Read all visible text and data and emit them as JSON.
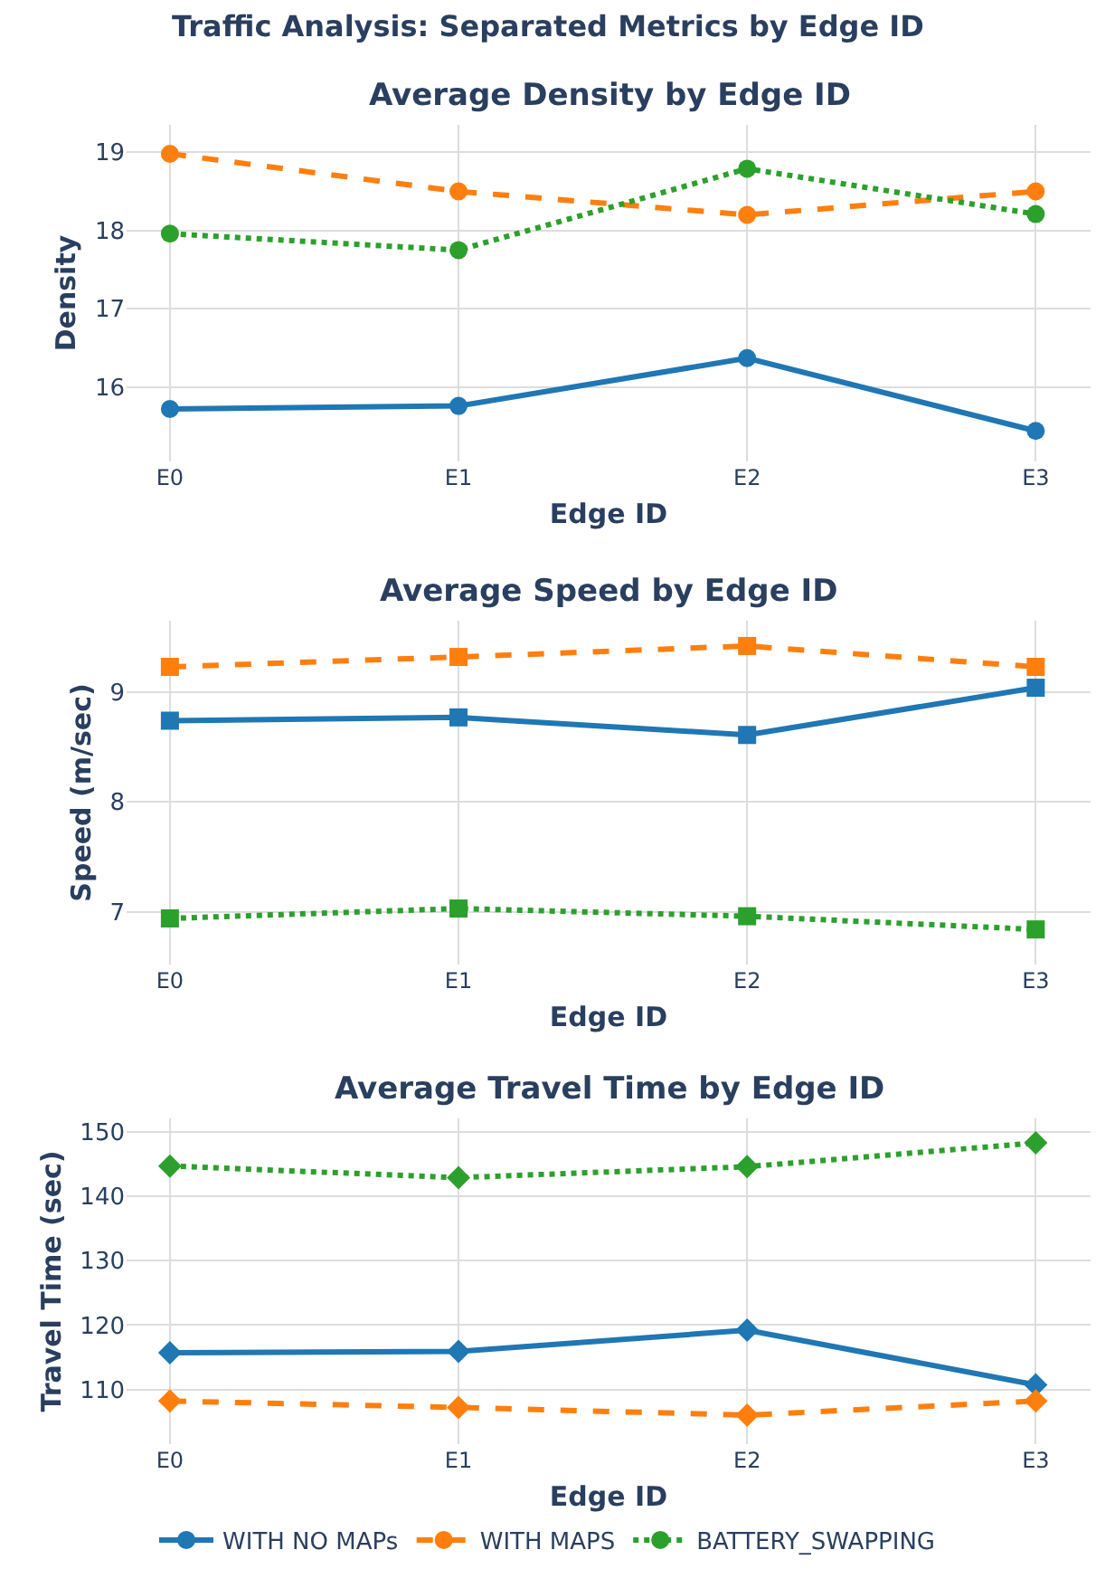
{
  "chart_data": [
    {
      "type": "line",
      "title": "Traffic Analysis: Separated Metrics by Edge ID",
      "subtitle": "Average Density by Edge ID",
      "xlabel": "Edge ID",
      "ylabel": "Density",
      "categories": [
        "E0",
        "E1",
        "E2",
        "E3"
      ],
      "ylim": [
        15.05,
        19.35
      ],
      "yticks": [
        16,
        17,
        18,
        19
      ],
      "grid": true,
      "marker": "circle",
      "legend": "bottom",
      "series": [
        {
          "name": "WITH NO MAPs",
          "color": "#1f77b4",
          "line_style": "solid",
          "values": [
            15.72,
            15.76,
            16.37,
            15.44
          ]
        },
        {
          "name": "WITH MAPS",
          "color": "#ff7f0e",
          "line_style": "dashed",
          "values": [
            18.98,
            18.5,
            18.2,
            18.5
          ]
        },
        {
          "name": "BATTERY_SWAPPING",
          "color": "#2ca02c",
          "line_style": "dotted",
          "values": [
            17.96,
            17.75,
            18.79,
            18.21
          ]
        }
      ]
    },
    {
      "type": "line",
      "title": "Average Speed by Edge ID",
      "xlabel": "Edge ID",
      "ylabel": "Speed (m/sec)",
      "categories": [
        "E0",
        "E1",
        "E2",
        "E3"
      ],
      "ylim": [
        6.52,
        9.65
      ],
      "yticks": [
        7,
        8,
        9
      ],
      "grid": true,
      "marker": "square",
      "series": [
        {
          "color": "#1f77b4",
          "line_style": "solid",
          "values": [
            8.74,
            8.77,
            8.61,
            9.04
          ]
        },
        {
          "color": "#ff7f0e",
          "line_style": "dashed",
          "values": [
            9.23,
            9.32,
            9.42,
            9.23
          ]
        },
        {
          "color": "#2ca02c",
          "line_style": "dotted",
          "values": [
            6.94,
            7.03,
            6.96,
            6.84
          ]
        }
      ]
    },
    {
      "type": "line",
      "title": "Average Travel Time by Edge ID",
      "xlabel": "Edge ID",
      "ylabel": "Travel Time (sec)",
      "categories": [
        "E0",
        "E1",
        "E2",
        "E3"
      ],
      "ylim": [
        101.5,
        152.1
      ],
      "yticks": [
        110,
        120,
        130,
        140,
        150
      ],
      "grid": true,
      "marker": "diamond",
      "series": [
        {
          "color": "#1f77b4",
          "line_style": "solid",
          "values": [
            115.7,
            115.9,
            119.2,
            110.7
          ]
        },
        {
          "color": "#ff7f0e",
          "line_style": "dashed",
          "values": [
            108.2,
            107.2,
            106.0,
            108.2
          ]
        },
        {
          "color": "#2ca02c",
          "line_style": "dotted",
          "values": [
            144.7,
            142.9,
            144.6,
            148.3
          ]
        }
      ]
    }
  ]
}
